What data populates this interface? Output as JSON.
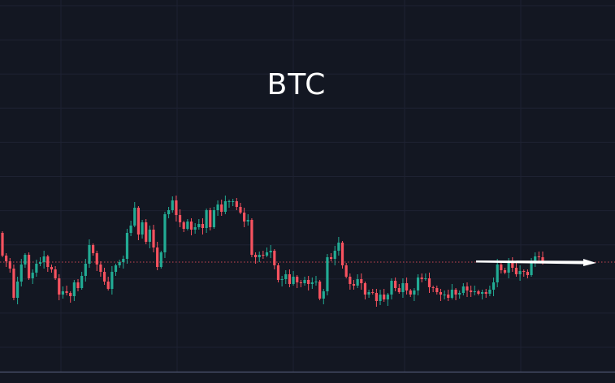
{
  "chart_data": {
    "type": "candlestick",
    "title": "BTC",
    "xlabel": "",
    "ylabel": "",
    "grid": true,
    "colors": {
      "up": "#22ab94",
      "down": "#f7525f",
      "background": "#131722",
      "grid": "#1e2232",
      "reference_line": "#f7525f",
      "arrow": "#ffffff"
    },
    "reference_price": 149,
    "open_first": 185,
    "closes": [
      157,
      150,
      141,
      105,
      125,
      146,
      158,
      129,
      136,
      147,
      149,
      156,
      143,
      140,
      129,
      109,
      113,
      111,
      107,
      124,
      117,
      132,
      147,
      170,
      160,
      146,
      137,
      125,
      116,
      137,
      145,
      149,
      153,
      185,
      194,
      216,
      183,
      198,
      174,
      189,
      167,
      143,
      161,
      208,
      213,
      225,
      207,
      198,
      190,
      199,
      189,
      192,
      196,
      191,
      213,
      192,
      213,
      220,
      211,
      224,
      224,
      224,
      217,
      210,
      199,
      201,
      158,
      155,
      158,
      157,
      161,
      163,
      145,
      127,
      128,
      134,
      122,
      131,
      124,
      123,
      127,
      122,
      124,
      125,
      104,
      113,
      155,
      153,
      163,
      173,
      145,
      131,
      122,
      120,
      128,
      123,
      109,
      112,
      111,
      101,
      109,
      103,
      109,
      126,
      117,
      112,
      123,
      114,
      109,
      114,
      130,
      128,
      129,
      118,
      117,
      112,
      109,
      109,
      105,
      115,
      109,
      111,
      119,
      114,
      112,
      113,
      110,
      112,
      110,
      115,
      124,
      146,
      139,
      136,
      150,
      142,
      134,
      138,
      137,
      133,
      150,
      156,
      155,
      149
    ],
    "annotation": {
      "type": "arrow",
      "direction": "right"
    }
  }
}
